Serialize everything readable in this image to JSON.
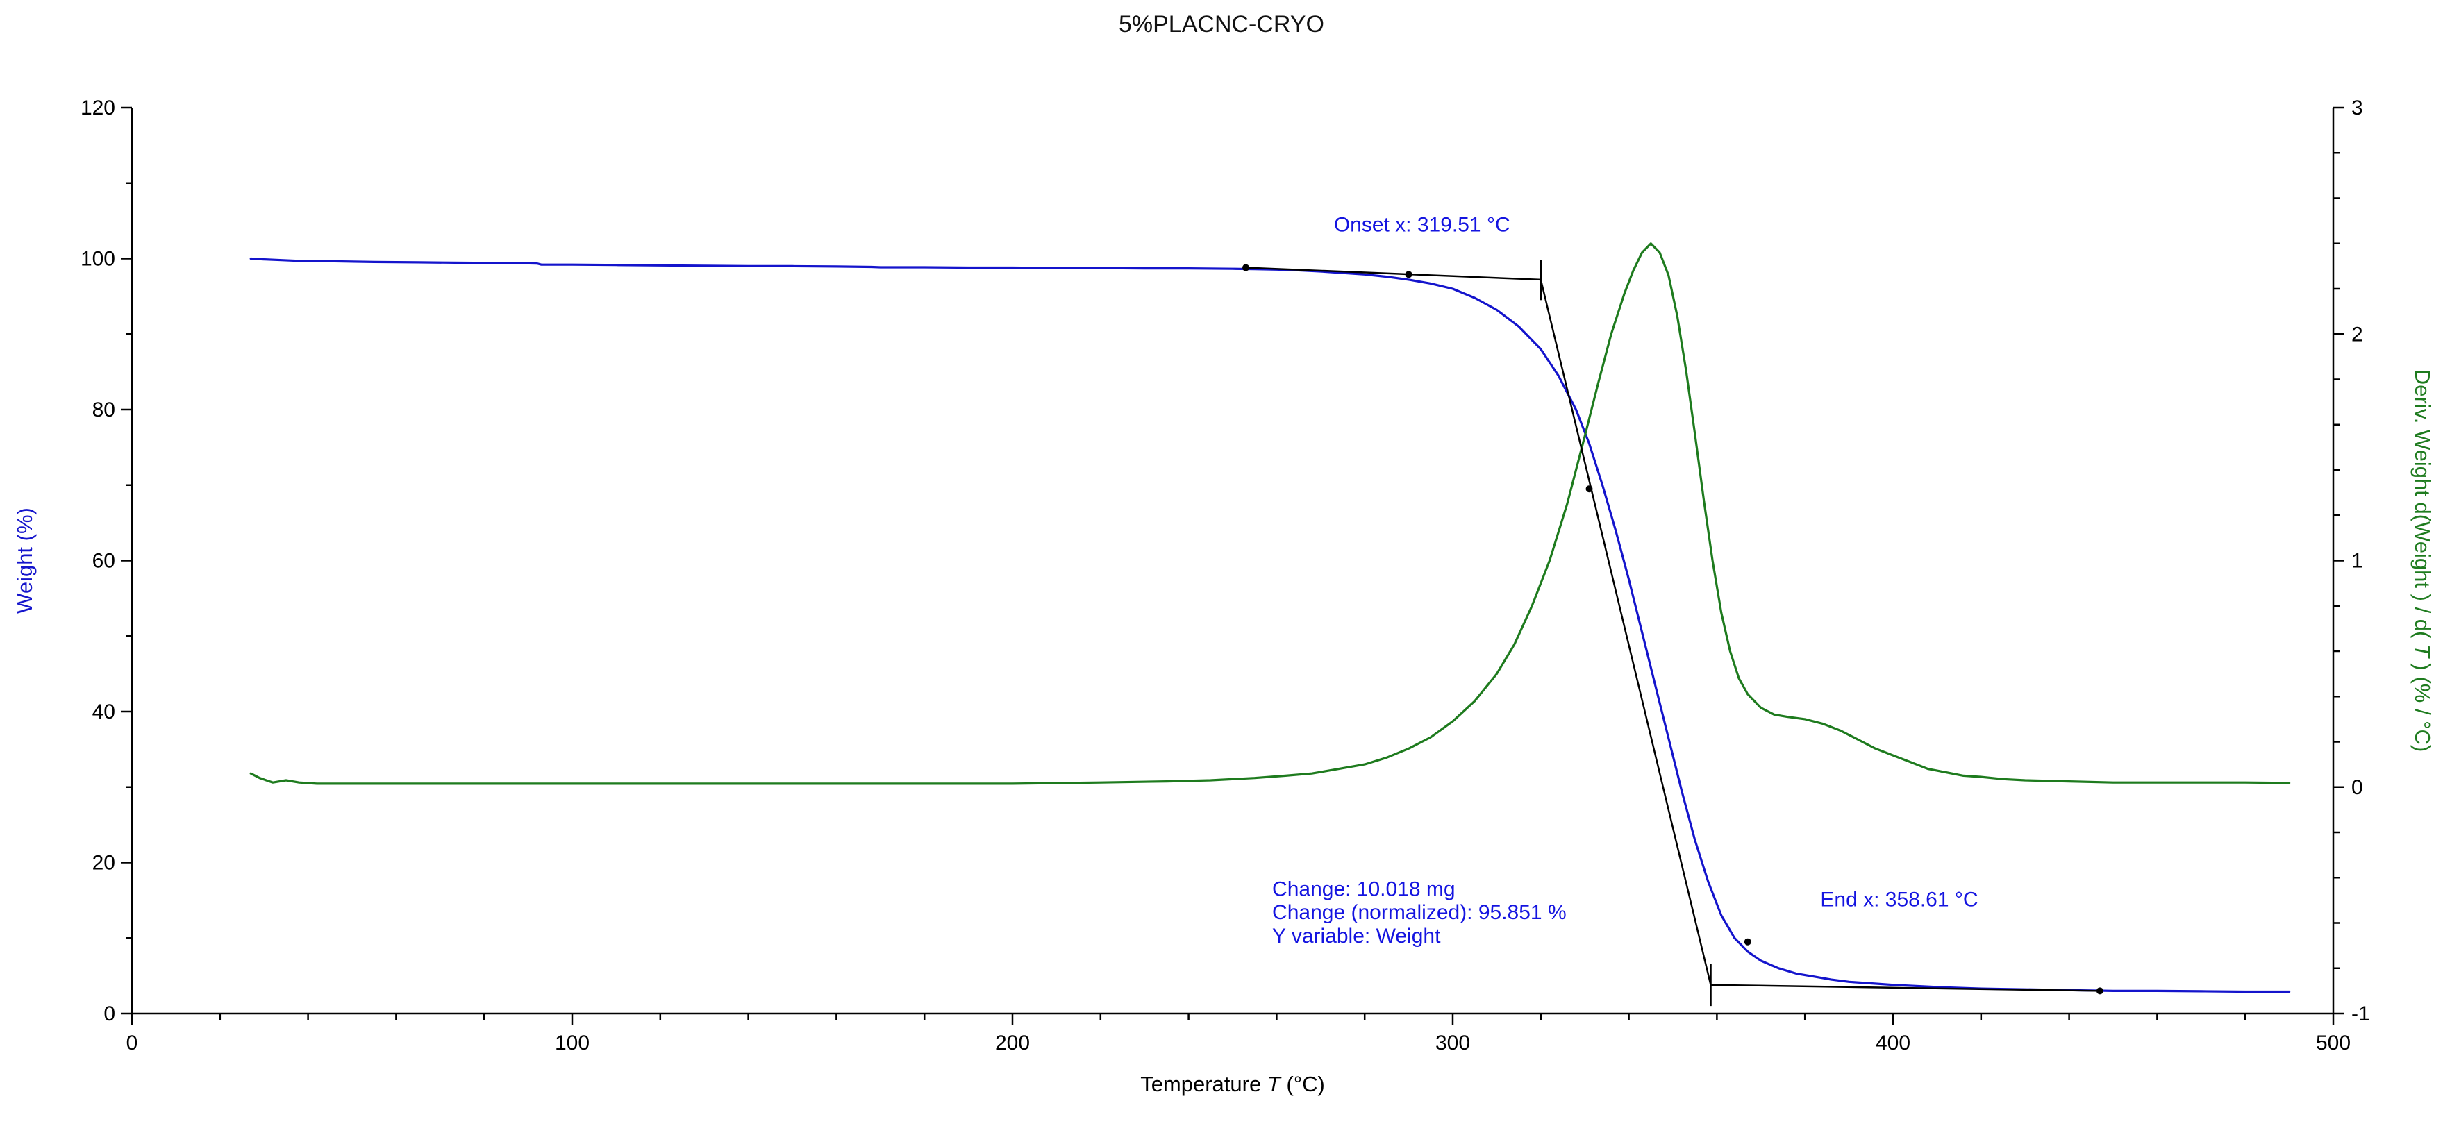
{
  "chart_data": {
    "type": "line",
    "title": "5%PLACNC-CRYO",
    "background": "#ffffff",
    "x_axis": {
      "label_parts": [
        "Temperature ",
        "T",
        " (°C)"
      ],
      "min": 0,
      "max": 500,
      "major_ticks": [
        0,
        100,
        200,
        300,
        400,
        500
      ],
      "minor_step": 20,
      "color": "#000000"
    },
    "y_left": {
      "label": "Weight (%)",
      "min": 0,
      "max": 120,
      "major_ticks": [
        0,
        20,
        40,
        60,
        80,
        100,
        120
      ],
      "minor_step": 10,
      "color": "#1414cc",
      "tick_label_color": "#000000"
    },
    "y_right": {
      "label_parts": [
        "Deriv. Weight d(Weight ) / d( ",
        "T",
        " ) (% / °C)"
      ],
      "min": -1,
      "max": 3,
      "major_ticks": [
        -1,
        0,
        1,
        2,
        3
      ],
      "minor_step": 0.2,
      "color": "#1e7b1e",
      "tick_label_color": "#000000"
    },
    "series": [
      {
        "name": "Weight",
        "axis": "left",
        "color": "#1414cc",
        "points": [
          [
            27,
            100
          ],
          [
            30,
            99.9
          ],
          [
            34,
            99.8
          ],
          [
            38,
            99.7
          ],
          [
            45,
            99.65
          ],
          [
            55,
            99.55
          ],
          [
            65,
            99.5
          ],
          [
            75,
            99.45
          ],
          [
            85,
            99.4
          ],
          [
            92,
            99.35
          ],
          [
            93,
            99.2
          ],
          [
            100,
            99.2
          ],
          [
            110,
            99.15
          ],
          [
            120,
            99.1
          ],
          [
            130,
            99.05
          ],
          [
            140,
            99.0
          ],
          [
            150,
            99.0
          ],
          [
            160,
            98.95
          ],
          [
            168,
            98.9
          ],
          [
            170,
            98.85
          ],
          [
            180,
            98.85
          ],
          [
            190,
            98.8
          ],
          [
            200,
            98.8
          ],
          [
            210,
            98.75
          ],
          [
            220,
            98.75
          ],
          [
            230,
            98.7
          ],
          [
            240,
            98.7
          ],
          [
            250,
            98.65
          ],
          [
            255,
            98.6
          ],
          [
            260,
            98.55
          ],
          [
            265,
            98.45
          ],
          [
            270,
            98.3
          ],
          [
            275,
            98.1
          ],
          [
            280,
            97.9
          ],
          [
            285,
            97.6
          ],
          [
            290,
            97.2
          ],
          [
            295,
            96.7
          ],
          [
            300,
            96.0
          ],
          [
            305,
            94.8
          ],
          [
            310,
            93.2
          ],
          [
            315,
            91.0
          ],
          [
            320,
            88.0
          ],
          [
            324,
            84.5
          ],
          [
            328,
            80.0
          ],
          [
            331,
            75.5
          ],
          [
            334,
            70.0
          ],
          [
            337,
            64.0
          ],
          [
            340,
            57.5
          ],
          [
            343,
            50.5
          ],
          [
            346,
            43.5
          ],
          [
            349,
            36.5
          ],
          [
            352,
            29.5
          ],
          [
            355,
            23.0
          ],
          [
            358,
            17.5
          ],
          [
            361,
            13.0
          ],
          [
            364,
            10.0
          ],
          [
            367,
            8.2
          ],
          [
            370,
            7.0
          ],
          [
            374,
            6.0
          ],
          [
            378,
            5.3
          ],
          [
            382,
            4.9
          ],
          [
            386,
            4.5
          ],
          [
            390,
            4.2
          ],
          [
            395,
            4.0
          ],
          [
            400,
            3.8
          ],
          [
            410,
            3.5
          ],
          [
            420,
            3.3
          ],
          [
            430,
            3.2
          ],
          [
            440,
            3.1
          ],
          [
            450,
            3.0
          ],
          [
            460,
            3.0
          ],
          [
            470,
            2.95
          ],
          [
            480,
            2.9
          ],
          [
            490,
            2.9
          ]
        ]
      },
      {
        "name": "Deriv. Weight",
        "axis": "right",
        "color": "#1e7b1e",
        "points": [
          [
            27,
            0.06
          ],
          [
            29,
            0.04
          ],
          [
            32,
            0.02
          ],
          [
            35,
            0.03
          ],
          [
            38,
            0.02
          ],
          [
            42,
            0.015
          ],
          [
            50,
            0.015
          ],
          [
            60,
            0.015
          ],
          [
            80,
            0.015
          ],
          [
            100,
            0.015
          ],
          [
            120,
            0.015
          ],
          [
            140,
            0.015
          ],
          [
            160,
            0.015
          ],
          [
            180,
            0.015
          ],
          [
            200,
            0.015
          ],
          [
            220,
            0.02
          ],
          [
            235,
            0.025
          ],
          [
            245,
            0.03
          ],
          [
            255,
            0.04
          ],
          [
            262,
            0.05
          ],
          [
            268,
            0.06
          ],
          [
            274,
            0.08
          ],
          [
            280,
            0.1
          ],
          [
            285,
            0.13
          ],
          [
            290,
            0.17
          ],
          [
            295,
            0.22
          ],
          [
            300,
            0.29
          ],
          [
            305,
            0.38
          ],
          [
            310,
            0.5
          ],
          [
            314,
            0.63
          ],
          [
            318,
            0.8
          ],
          [
            322,
            1.0
          ],
          [
            326,
            1.25
          ],
          [
            330,
            1.55
          ],
          [
            333,
            1.78
          ],
          [
            336,
            2.0
          ],
          [
            339,
            2.18
          ],
          [
            341,
            2.28
          ],
          [
            343,
            2.36
          ],
          [
            345,
            2.4
          ],
          [
            347,
            2.36
          ],
          [
            349,
            2.26
          ],
          [
            351,
            2.08
          ],
          [
            353,
            1.84
          ],
          [
            355,
            1.56
          ],
          [
            357,
            1.27
          ],
          [
            359,
            1.0
          ],
          [
            361,
            0.77
          ],
          [
            363,
            0.6
          ],
          [
            365,
            0.48
          ],
          [
            367,
            0.41
          ],
          [
            370,
            0.35
          ],
          [
            373,
            0.32
          ],
          [
            376,
            0.31
          ],
          [
            380,
            0.3
          ],
          [
            384,
            0.28
          ],
          [
            388,
            0.25
          ],
          [
            392,
            0.21
          ],
          [
            396,
            0.17
          ],
          [
            400,
            0.14
          ],
          [
            404,
            0.11
          ],
          [
            408,
            0.08
          ],
          [
            412,
            0.065
          ],
          [
            416,
            0.05
          ],
          [
            420,
            0.045
          ],
          [
            425,
            0.035
          ],
          [
            430,
            0.03
          ],
          [
            440,
            0.025
          ],
          [
            450,
            0.02
          ],
          [
            460,
            0.02
          ],
          [
            470,
            0.02
          ],
          [
            480,
            0.02
          ],
          [
            490,
            0.018
          ]
        ]
      }
    ],
    "construction": {
      "color": "#000000",
      "lines": [
        {
          "name": "baseline-pre",
          "points": [
            [
              253,
              98.8
            ],
            [
              320,
              97.2
            ]
          ]
        },
        {
          "name": "tangent-steep",
          "points": [
            [
              320,
              97.2
            ],
            [
              358.6,
              3.8
            ]
          ]
        },
        {
          "name": "baseline-post",
          "points": [
            [
              358.6,
              3.8
            ],
            [
              447,
              3.0
            ]
          ]
        }
      ],
      "markers": [
        [
          253,
          98.8
        ],
        [
          290,
          97.9
        ],
        [
          331,
          69.5
        ],
        [
          367,
          9.5
        ],
        [
          447,
          3.0
        ]
      ],
      "vticks": [
        {
          "x": 320,
          "y1": 99.8,
          "y2": 94.5
        },
        {
          "x": 358.6,
          "y1": 6.6,
          "y2": 1.0
        }
      ]
    },
    "annotations": [
      {
        "x": 273,
        "y": 103.6,
        "text": "Onset x: 319.51 °C",
        "color": "#1414e0"
      },
      {
        "x": 259,
        "y": 15.6,
        "text": "Change: 10.018 mg",
        "color": "#1414e0"
      },
      {
        "x": 259,
        "y": 12.5,
        "text": "Change (normalized): 95.851 %",
        "color": "#1414e0"
      },
      {
        "x": 259,
        "y": 9.4,
        "text": "Y variable: Weight",
        "color": "#1414e0"
      },
      {
        "x": 383.5,
        "y": 14.2,
        "text": "End x: 358.61 °C",
        "color": "#1414e0"
      }
    ]
  }
}
